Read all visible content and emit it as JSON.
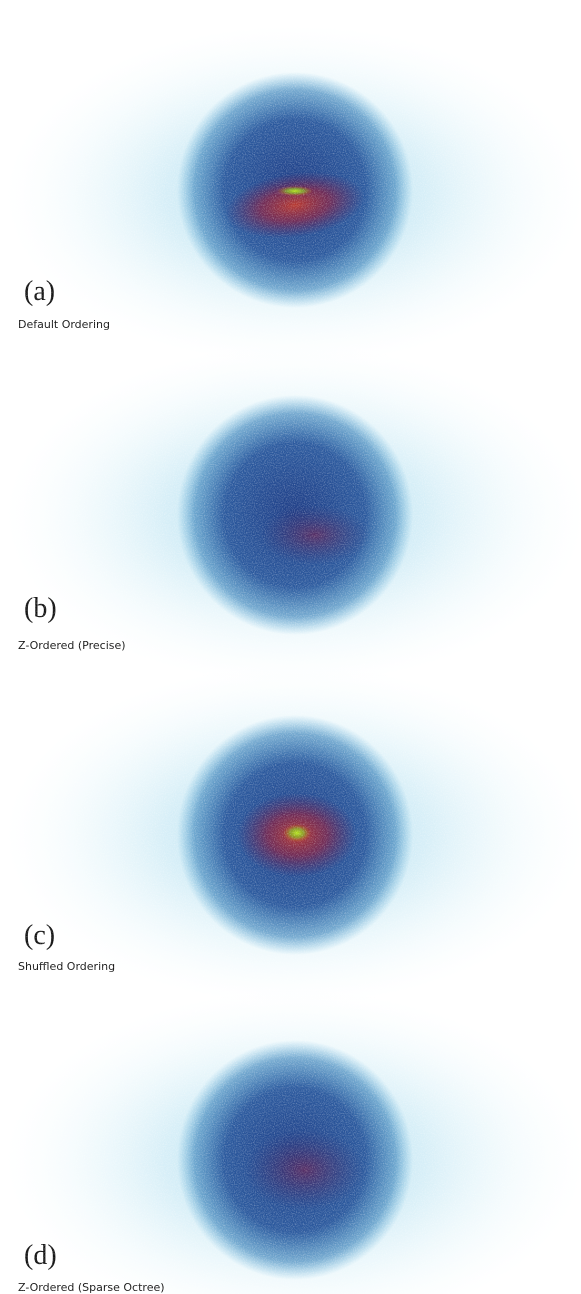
{
  "panels": [
    {
      "label": "(a)",
      "caption": "Default Ordering"
    },
    {
      "label": "(b)",
      "caption": "Z-Ordered (Precise)"
    },
    {
      "label": "(c)",
      "caption": "Shuffled Ordering"
    },
    {
      "label": "(d)",
      "caption": "Z-Ordered (Sparse Octree)"
    }
  ]
}
